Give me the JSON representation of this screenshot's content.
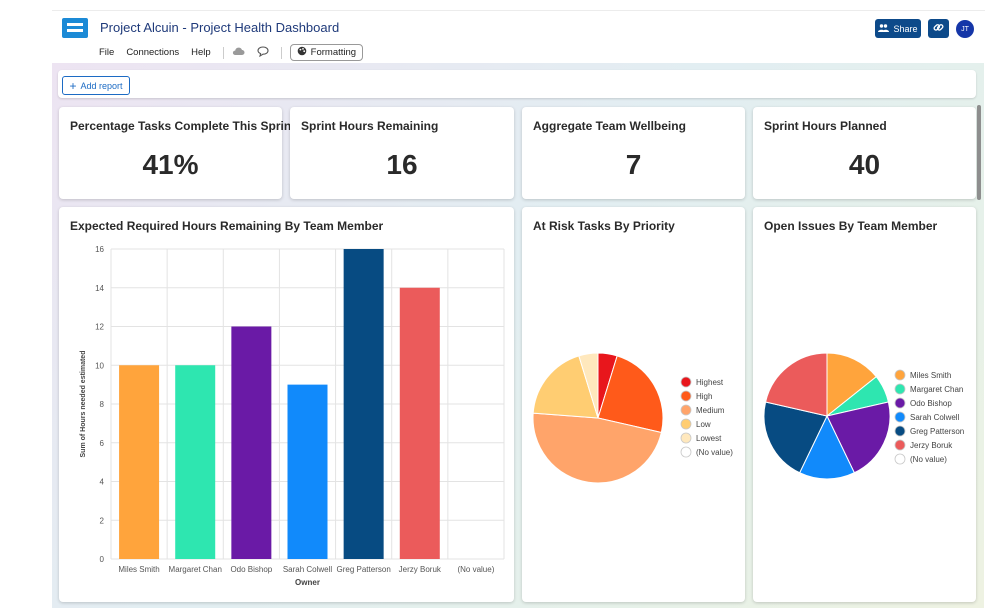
{
  "app": {
    "title": "Project Alcuin - Project Health Dashboard",
    "menu": [
      "File",
      "Connections",
      "Help"
    ],
    "formatting_label": "Formatting",
    "share_label": "Share",
    "avatar_initials": "JT",
    "brand_color": "#0d4a8a"
  },
  "toolbar": {
    "add_report_label": "Add report"
  },
  "kpis": [
    {
      "title": "Percentage Tasks Complete This Sprint",
      "value": "41%"
    },
    {
      "title": "Sprint Hours Remaining",
      "value": "16"
    },
    {
      "title": "Aggregate Team Wellbeing",
      "value": "7"
    },
    {
      "title": "Sprint Hours Planned",
      "value": "40"
    }
  ],
  "charts": {
    "bar_title": "Expected Required Hours Remaining By Team Member",
    "pie1_title": "At Risk Tasks By Priority",
    "pie2_title": "Open Issues By Team Member"
  },
  "chart_data": [
    {
      "type": "bar",
      "title": "Expected Required Hours Remaining By Team Member",
      "xlabel": "Owner",
      "ylabel": "Sum of Hours needed estimated",
      "ylim": [
        0,
        16
      ],
      "yticks": [
        0,
        2,
        4,
        6,
        8,
        10,
        12,
        14,
        16
      ],
      "grid": true,
      "categories": [
        "Miles Smith",
        "Margaret Chan",
        "Odo Bishop",
        "Sarah Colwell",
        "Greg Patterson",
        "Jerzy Boruk",
        "(No value)"
      ],
      "values": [
        10,
        10,
        12,
        9,
        16,
        14,
        0
      ],
      "colors": [
        "#ffa43c",
        "#2ee6b0",
        "#6a1aa6",
        "#118afb",
        "#074b82",
        "#eb5b5b",
        "#dddddd"
      ]
    },
    {
      "type": "pie",
      "title": "At Risk Tasks By Priority",
      "labels": [
        "Highest",
        "High",
        "Medium",
        "Low",
        "Lowest",
        "(No value)"
      ],
      "values": [
        1,
        5,
        10,
        4,
        1,
        0
      ],
      "colors": [
        "#e8161c",
        "#ff5a1a",
        "#ffa46a",
        "#ffcd72",
        "#ffe8bd",
        "#ffffff"
      ],
      "legend": "right"
    },
    {
      "type": "pie",
      "title": "Open Issues By Team Member",
      "labels": [
        "Miles Smith",
        "Margaret Chan",
        "Odo Bishop",
        "Sarah Colwell",
        "Greg Patterson",
        "Jerzy Boruk",
        "(No value)"
      ],
      "values": [
        2,
        1,
        3,
        2,
        3,
        3,
        0
      ],
      "colors": [
        "#ffa43c",
        "#2ee6b0",
        "#6a1aa6",
        "#118afb",
        "#074b82",
        "#eb5b5b",
        "#ffffff"
      ],
      "legend": "right"
    }
  ]
}
